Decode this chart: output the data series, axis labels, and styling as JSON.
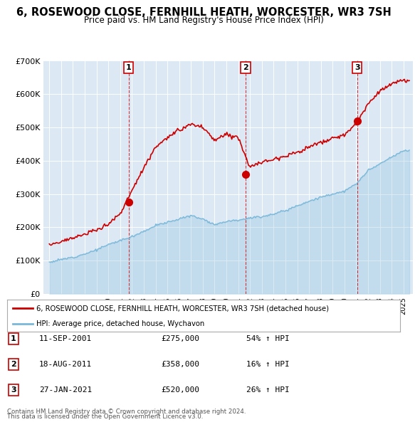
{
  "title_line1": "6, ROSEWOOD CLOSE, FERNHILL HEATH, WORCESTER, WR3 7SH",
  "title_line2": "Price paid vs. HM Land Registry's House Price Index (HPI)",
  "hpi_color": "#7ab8d9",
  "price_color": "#cc0000",
  "plot_bg_color": "#dce9f5",
  "ylim": [
    0,
    700000
  ],
  "yticks": [
    0,
    100000,
    200000,
    300000,
    400000,
    500000,
    600000,
    700000
  ],
  "ytick_labels": [
    "£0",
    "£100K",
    "£200K",
    "£300K",
    "£400K",
    "£500K",
    "£600K",
    "£700K"
  ],
  "transactions": [
    {
      "num": 1,
      "date": "11-SEP-2001",
      "price": 275000,
      "hpi_change": "54% ↑ HPI",
      "x_year": 2001.71
    },
    {
      "num": 2,
      "date": "18-AUG-2011",
      "price": 358000,
      "hpi_change": "16% ↑ HPI",
      "x_year": 2011.63
    },
    {
      "num": 3,
      "date": "27-JAN-2021",
      "price": 520000,
      "hpi_change": "26% ↑ HPI",
      "x_year": 2021.08
    }
  ],
  "legend_line1": "6, ROSEWOOD CLOSE, FERNHILL HEATH, WORCESTER, WR3 7SH (detached house)",
  "legend_line2": "HPI: Average price, detached house, Wychavon",
  "footer_line1": "Contains HM Land Registry data © Crown copyright and database right 2024.",
  "footer_line2": "This data is licensed under the Open Government Licence v3.0.",
  "xmin": 1994.5,
  "xmax": 2025.8,
  "hpi_waypoints_x": [
    1995,
    1996,
    1997,
    1998,
    1999,
    2000,
    2001,
    2002,
    2003,
    2004,
    2005,
    2006,
    2007,
    2008,
    2009,
    2010,
    2011,
    2012,
    2013,
    2014,
    2015,
    2016,
    2017,
    2018,
    2019,
    2020,
    2021,
    2022,
    2023,
    2024,
    2025
  ],
  "hpi_waypoints_y": [
    95000,
    103000,
    110000,
    120000,
    132000,
    148000,
    160000,
    172000,
    188000,
    205000,
    215000,
    225000,
    235000,
    225000,
    208000,
    218000,
    222000,
    228000,
    232000,
    240000,
    250000,
    265000,
    278000,
    290000,
    300000,
    308000,
    330000,
    370000,
    390000,
    410000,
    430000
  ],
  "price_waypoints_x": [
    1995,
    1996,
    1997,
    1998,
    1999,
    2000,
    2001,
    2002,
    2003,
    2004,
    2005,
    2006,
    2007,
    2008,
    2009,
    2010,
    2011,
    2012,
    2013,
    2014,
    2015,
    2016,
    2017,
    2018,
    2019,
    2020,
    2021,
    2022,
    2023,
    2024,
    2025
  ],
  "price_waypoints_y": [
    148000,
    158000,
    168000,
    178000,
    192000,
    210000,
    240000,
    310000,
    380000,
    440000,
    470000,
    490000,
    510000,
    500000,
    460000,
    480000,
    470000,
    380000,
    395000,
    405000,
    415000,
    425000,
    440000,
    455000,
    465000,
    478000,
    510000,
    570000,
    610000,
    630000,
    640000
  ]
}
